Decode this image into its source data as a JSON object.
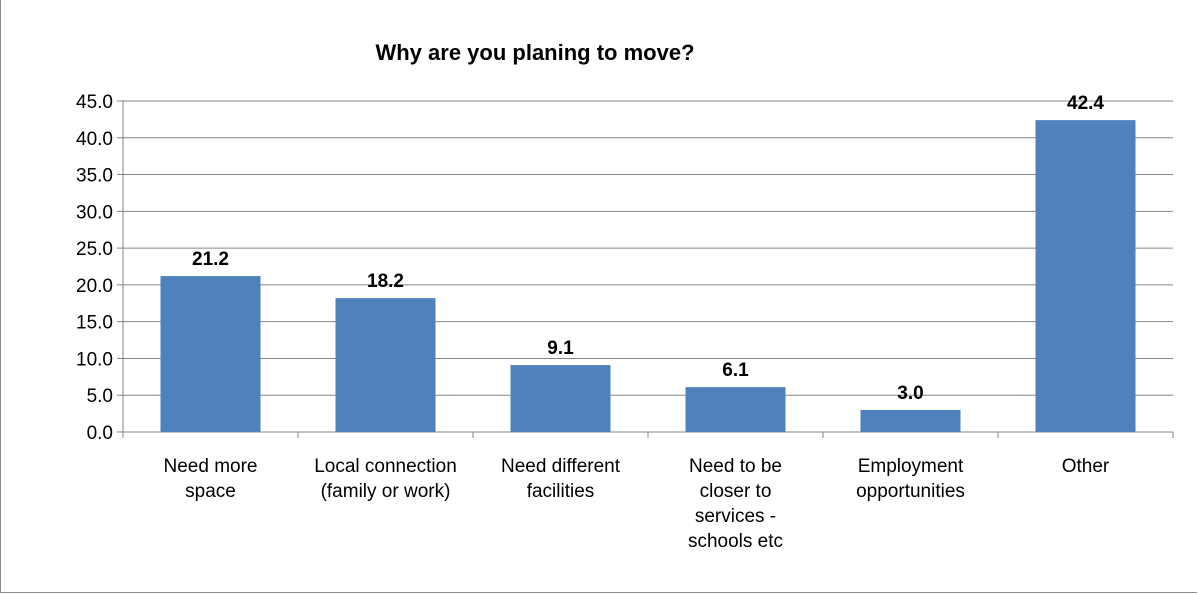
{
  "chart_data": {
    "type": "bar",
    "title": "Why are you planing to move?",
    "categories": [
      [
        "Need more",
        "space"
      ],
      [
        "Local connection",
        "(family or work)"
      ],
      [
        "Need different",
        "facilities"
      ],
      [
        "Need to be",
        "closer to",
        "services -",
        "schools etc"
      ],
      [
        "Employment",
        "opportunities"
      ],
      [
        "Other"
      ]
    ],
    "values": [
      21.2,
      18.2,
      9.1,
      6.1,
      3.0,
      42.4
    ],
    "data_labels": [
      "21.2",
      "18.2",
      "9.1",
      "6.1",
      "3.0",
      "42.4"
    ],
    "ylim": [
      0,
      45
    ],
    "yticks": [
      "0.0",
      "5.0",
      "10.0",
      "15.0",
      "20.0",
      "25.0",
      "30.0",
      "35.0",
      "40.0",
      "45.0"
    ],
    "ytick_values": [
      0,
      5,
      10,
      15,
      20,
      25,
      30,
      35,
      40,
      45
    ],
    "grid": true,
    "legend": "none",
    "bar_color": "#4f81bd",
    "grid_color": "#868686"
  }
}
